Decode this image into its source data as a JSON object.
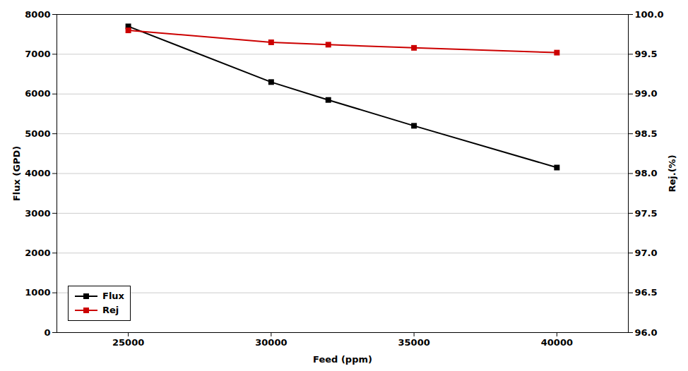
{
  "chart_data": {
    "type": "line",
    "x": [
      25000,
      30000,
      32000,
      35000,
      40000
    ],
    "xlabel": "Feed (ppm)",
    "ylabel": "Flux (GPD)",
    "y2label": "Rej.(%)",
    "xlim": [
      22500,
      42500
    ],
    "xticks": [
      25000,
      30000,
      35000,
      40000
    ],
    "ylim": [
      0,
      8000
    ],
    "yticks": [
      0,
      1000,
      2000,
      3000,
      4000,
      5000,
      6000,
      7000,
      8000
    ],
    "y2lim": [
      96.0,
      100.0
    ],
    "y2ticks": [
      {
        "value": 96.0,
        "label": "96.0"
      },
      96.5,
      {
        "value": 97.0,
        "label": "97.0"
      },
      97.5,
      {
        "value": 98.0,
        "label": "98.0"
      },
      98.5,
      {
        "value": 99.0,
        "label": "99.0"
      },
      99.5,
      {
        "value": 100.0,
        "label": "100.0"
      }
    ],
    "grid": true,
    "legend": "lower left",
    "marker": "square",
    "series": [
      {
        "name": "Flux",
        "color": "#000000",
        "values": [
          7700,
          6300,
          5850,
          5200,
          4150
        ]
      },
      {
        "name": "Rej",
        "color": "#cc0000",
        "axis": "y2",
        "values": [
          99.8,
          99.65,
          99.62,
          99.58,
          99.52
        ]
      }
    ]
  }
}
